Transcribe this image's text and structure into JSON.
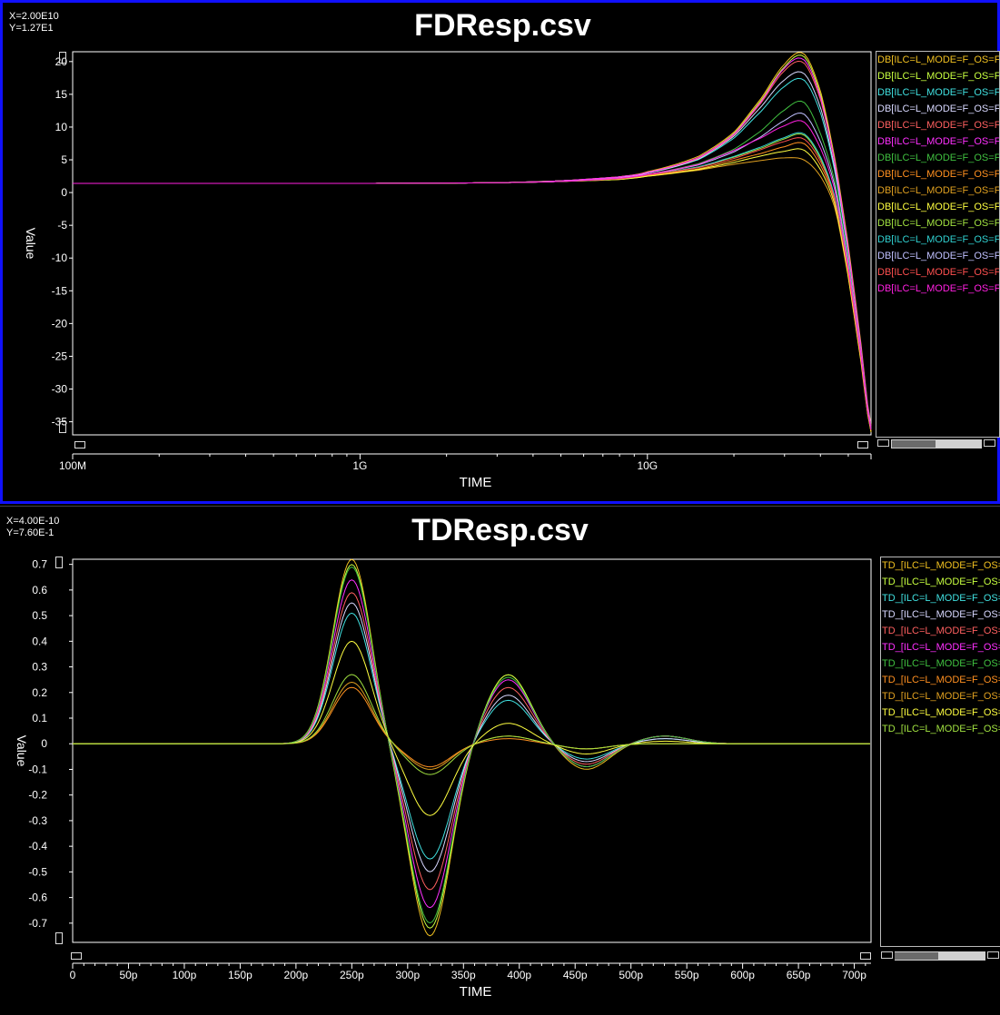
{
  "colors": {
    "background": "#000000",
    "frame": "#1010ff",
    "axis": "#ffffff"
  },
  "charts": [
    {
      "coord_x": "X=2.00E10",
      "coord_y": "Y=1.27E1",
      "title": "FDResp.csv"
    },
    {
      "coord_x": "X=4.00E-10",
      "coord_y": "Y=7.60E-1",
      "title": "TDResp.csv"
    }
  ],
  "chart_data": [
    {
      "type": "line",
      "title": "FDResp.csv",
      "xlabel": "TIME",
      "ylabel": "Value",
      "x_scale": "log",
      "xlim": [
        100000000,
        60000000000
      ],
      "ylim": [
        -37,
        21.5
      ],
      "x_tick_labels": [
        {
          "x": 100000000,
          "label": "100M"
        },
        {
          "x": 1000000000,
          "label": "1G"
        },
        {
          "x": 10000000000,
          "label": "10G"
        }
      ],
      "y_ticks": [
        20,
        15,
        10,
        5,
        0,
        -5,
        -10,
        -15,
        -20,
        -25,
        -30,
        -35
      ],
      "x_samples": [
        100000000,
        1000000000,
        3000000000,
        5000000000,
        8000000000,
        10000000000,
        15000000000,
        20000000000,
        25000000000,
        30000000000,
        35000000000,
        40000000000,
        45000000000,
        50000000000,
        55000000000,
        60000000000
      ],
      "series": [
        {
          "name": "DB[ILC=L_MODE=F_OS=F_",
          "color": "#f0c020",
          "values": [
            1.4,
            1.4,
            1.5,
            1.8,
            2.4,
            3.2,
            5.5,
            9.2,
            14.5,
            19.6,
            21.2,
            15.5,
            5.0,
            -8.0,
            -22.0,
            -35.5
          ]
        },
        {
          "name": "DB[ILC=L_MODE=F_OS=F_",
          "color": "#c8ff40",
          "values": [
            1.4,
            1.4,
            1.5,
            1.8,
            2.4,
            3.1,
            5.3,
            9.0,
            14.2,
            19.2,
            20.8,
            15.0,
            4.5,
            -8.5,
            -22.5,
            -35.8
          ]
        },
        {
          "name": "DB[ILC=L_MODE=F_OS=F_",
          "color": "#40e0e0",
          "values": [
            1.4,
            1.4,
            1.5,
            1.8,
            2.3,
            3.0,
            5.0,
            8.3,
            12.5,
            16.2,
            17.2,
            12.2,
            3.0,
            -9.5,
            -23.0,
            -36.0
          ]
        },
        {
          "name": "DB[ILC=L_MODE=F_OS=F_",
          "color": "#d8d8ff",
          "values": [
            1.4,
            1.4,
            1.5,
            1.8,
            2.3,
            3.0,
            5.1,
            8.6,
            13.2,
            17.2,
            18.2,
            13.0,
            3.5,
            -9.0,
            -22.8,
            -35.9
          ]
        },
        {
          "name": "DB[ILC=L_MODE=F_OS=F_",
          "color": "#ff6060",
          "values": [
            1.4,
            1.4,
            1.5,
            1.8,
            2.4,
            3.1,
            5.2,
            8.8,
            13.8,
            18.6,
            19.8,
            14.2,
            4.2,
            -8.8,
            -22.6,
            -35.8
          ]
        },
        {
          "name": "DB[ILC=L_MODE=F_OS=F_",
          "color": "#ff30ff",
          "values": [
            1.4,
            1.4,
            1.5,
            1.8,
            2.4,
            3.1,
            5.3,
            8.9,
            14.0,
            19.0,
            20.3,
            14.6,
            4.4,
            -8.6,
            -22.5,
            -35.7
          ]
        },
        {
          "name": "DB[ILC=L_MODE=F_OS=F_",
          "color": "#40c040",
          "values": [
            1.4,
            1.4,
            1.5,
            1.7,
            2.2,
            2.8,
            4.4,
            6.6,
            9.5,
            12.6,
            13.8,
            9.0,
            1.5,
            -10.5,
            -23.5,
            -36.0
          ]
        },
        {
          "name": "DB[ILC=L_MODE=F_OS=F_",
          "color": "#ff9020",
          "values": [
            1.4,
            1.4,
            1.5,
            1.7,
            2.1,
            2.6,
            3.6,
            4.9,
            6.0,
            7.0,
            7.5,
            4.2,
            -1.5,
            -12.5,
            -24.5,
            -36.5
          ]
        },
        {
          "name": "DB[ILC=L_MODE=F_OS=F_",
          "color": "#e0a020",
          "values": [
            1.4,
            1.4,
            1.5,
            1.7,
            2.0,
            2.5,
            3.4,
            4.3,
            4.9,
            5.3,
            5.0,
            2.5,
            -2.5,
            -13.0,
            -25.0,
            -36.6
          ]
        },
        {
          "name": "DB[ILC=L_MODE=F_OS=F_",
          "color": "#ffff40",
          "values": [
            1.4,
            1.4,
            1.5,
            1.7,
            2.0,
            2.5,
            3.5,
            4.6,
            5.6,
            6.3,
            6.5,
            3.5,
            -2.0,
            -12.8,
            -24.8,
            -36.5
          ]
        },
        {
          "name": "DB[ILC=L_MODE=F_OS=F_",
          "color": "#a0e040",
          "values": [
            1.4,
            1.4,
            1.5,
            1.7,
            2.1,
            2.7,
            3.9,
            5.4,
            6.8,
            8.2,
            8.8,
            5.2,
            -1.0,
            -12.0,
            -24.2,
            -36.3
          ]
        },
        {
          "name": "DB[ILC=L_MODE=F_OS=F_",
          "color": "#30d0d0",
          "values": [
            1.4,
            1.4,
            1.5,
            1.7,
            2.1,
            2.7,
            3.9,
            5.5,
            7.0,
            8.4,
            9.0,
            5.5,
            -0.8,
            -11.8,
            -24.0,
            -36.2
          ]
        },
        {
          "name": "DB[ILC=L_MODE=F_OS=F_",
          "color": "#c0c0ff",
          "values": [
            1.4,
            1.4,
            1.5,
            1.7,
            2.2,
            2.8,
            4.2,
            6.2,
            8.6,
            11.0,
            12.0,
            7.8,
            0.8,
            -11.0,
            -23.8,
            -36.1
          ]
        },
        {
          "name": "DB[ILC=L_MODE=F_OS=F_",
          "color": "#ff5050",
          "values": [
            1.4,
            1.4,
            1.5,
            1.7,
            2.1,
            2.7,
            3.8,
            5.2,
            6.6,
            7.8,
            8.2,
            4.8,
            -1.2,
            -12.2,
            -24.3,
            -36.3
          ]
        },
        {
          "name": "DB[ILC=L_MODE=F_OS=F_",
          "color": "#ff20e0",
          "values": [
            1.4,
            1.4,
            1.5,
            1.7,
            2.2,
            2.8,
            4.3,
            6.4,
            8.4,
            10.2,
            10.8,
            6.8,
            0.2,
            -11.3,
            -23.9,
            -36.2
          ]
        }
      ]
    },
    {
      "type": "line",
      "title": "TDResp.csv",
      "xlabel": "TIME",
      "ylabel": "Value",
      "xlim": [
        0,
        715
      ],
      "x_unit": "ps",
      "ylim": [
        -0.775,
        0.72
      ],
      "x_ticks": [
        0,
        50,
        100,
        150,
        200,
        250,
        300,
        350,
        400,
        450,
        500,
        550,
        600,
        650,
        700
      ],
      "x_tick_labels": [
        "0",
        "50p",
        "100p",
        "150p",
        "200p",
        "250p",
        "300p",
        "350p",
        "400p",
        "450p",
        "500p",
        "550p",
        "600p",
        "650p",
        "700p"
      ],
      "y_ticks": [
        0.7,
        0.6,
        0.5,
        0.4,
        0.3,
        0.2,
        0.1,
        0,
        -0.1,
        -0.2,
        -0.3,
        -0.4,
        -0.5,
        -0.6,
        -0.7
      ],
      "y_tick_labels": [
        "0.7",
        "0.6",
        "0.5",
        "0.4",
        "0.3",
        "0.2",
        "0.1",
        "0",
        "-0.1",
        "-0.2",
        "-0.3",
        "-0.4",
        "-0.5",
        "-0.6",
        "-0.7"
      ],
      "series": [
        {
          "name": "TD_[ILC=L_MODE=F_OS=F",
          "color": "#f0c020",
          "peak_time": 250,
          "params": [
            0.72,
            -0.75,
            0.27,
            -0.1,
            0.03
          ]
        },
        {
          "name": "TD_[ILC=L_MODE=F_OS=F",
          "color": "#c8ff40",
          "peak_time": 250,
          "params": [
            0.7,
            -0.72,
            0.27,
            -0.09,
            0.03
          ]
        },
        {
          "name": "TD_[ILC=L_MODE=F_OS=F",
          "color": "#40e0e0",
          "peak_time": 250,
          "params": [
            0.51,
            -0.45,
            0.17,
            -0.06,
            0.02
          ]
        },
        {
          "name": "TD_[ILC=L_MODE=F_OS=F",
          "color": "#d8d8ff",
          "peak_time": 250,
          "params": [
            0.55,
            -0.5,
            0.19,
            -0.07,
            0.02
          ]
        },
        {
          "name": "TD_[ILC=L_MODE=F_OS=F",
          "color": "#ff6060",
          "peak_time": 250,
          "params": [
            0.59,
            -0.57,
            0.22,
            -0.08,
            0.03
          ]
        },
        {
          "name": "TD_[ILC=L_MODE=F_OS=F",
          "color": "#ff30ff",
          "peak_time": 250,
          "params": [
            0.64,
            -0.64,
            0.25,
            -0.09,
            0.03
          ]
        },
        {
          "name": "TD_[ILC=L_MODE=F_OS=F",
          "color": "#40c040",
          "peak_time": 250,
          "params": [
            0.69,
            -0.7,
            0.26,
            -0.09,
            0.03
          ]
        },
        {
          "name": "TD_[ILC=L_MODE=F_OS=F",
          "color": "#ff9020",
          "peak_time": 250,
          "params": [
            0.22,
            -0.09,
            0.02,
            -0.02,
            0.0
          ]
        },
        {
          "name": "TD_[ILC=L_MODE=F_OS=F",
          "color": "#e0a020",
          "peak_time": 250,
          "params": [
            0.24,
            -0.1,
            0.03,
            -0.02,
            0.0
          ]
        },
        {
          "name": "TD_[ILC=L_MODE=F_OS=F",
          "color": "#ffff40",
          "peak_time": 250,
          "params": [
            0.4,
            -0.28,
            0.08,
            -0.04,
            0.01
          ]
        },
        {
          "name": "TD_[ILC=L_MODE=F_OS=F",
          "color": "#a0e040",
          "peak_time": 250,
          "params": [
            0.27,
            -0.12,
            0.03,
            -0.02,
            0.0
          ]
        }
      ]
    }
  ]
}
